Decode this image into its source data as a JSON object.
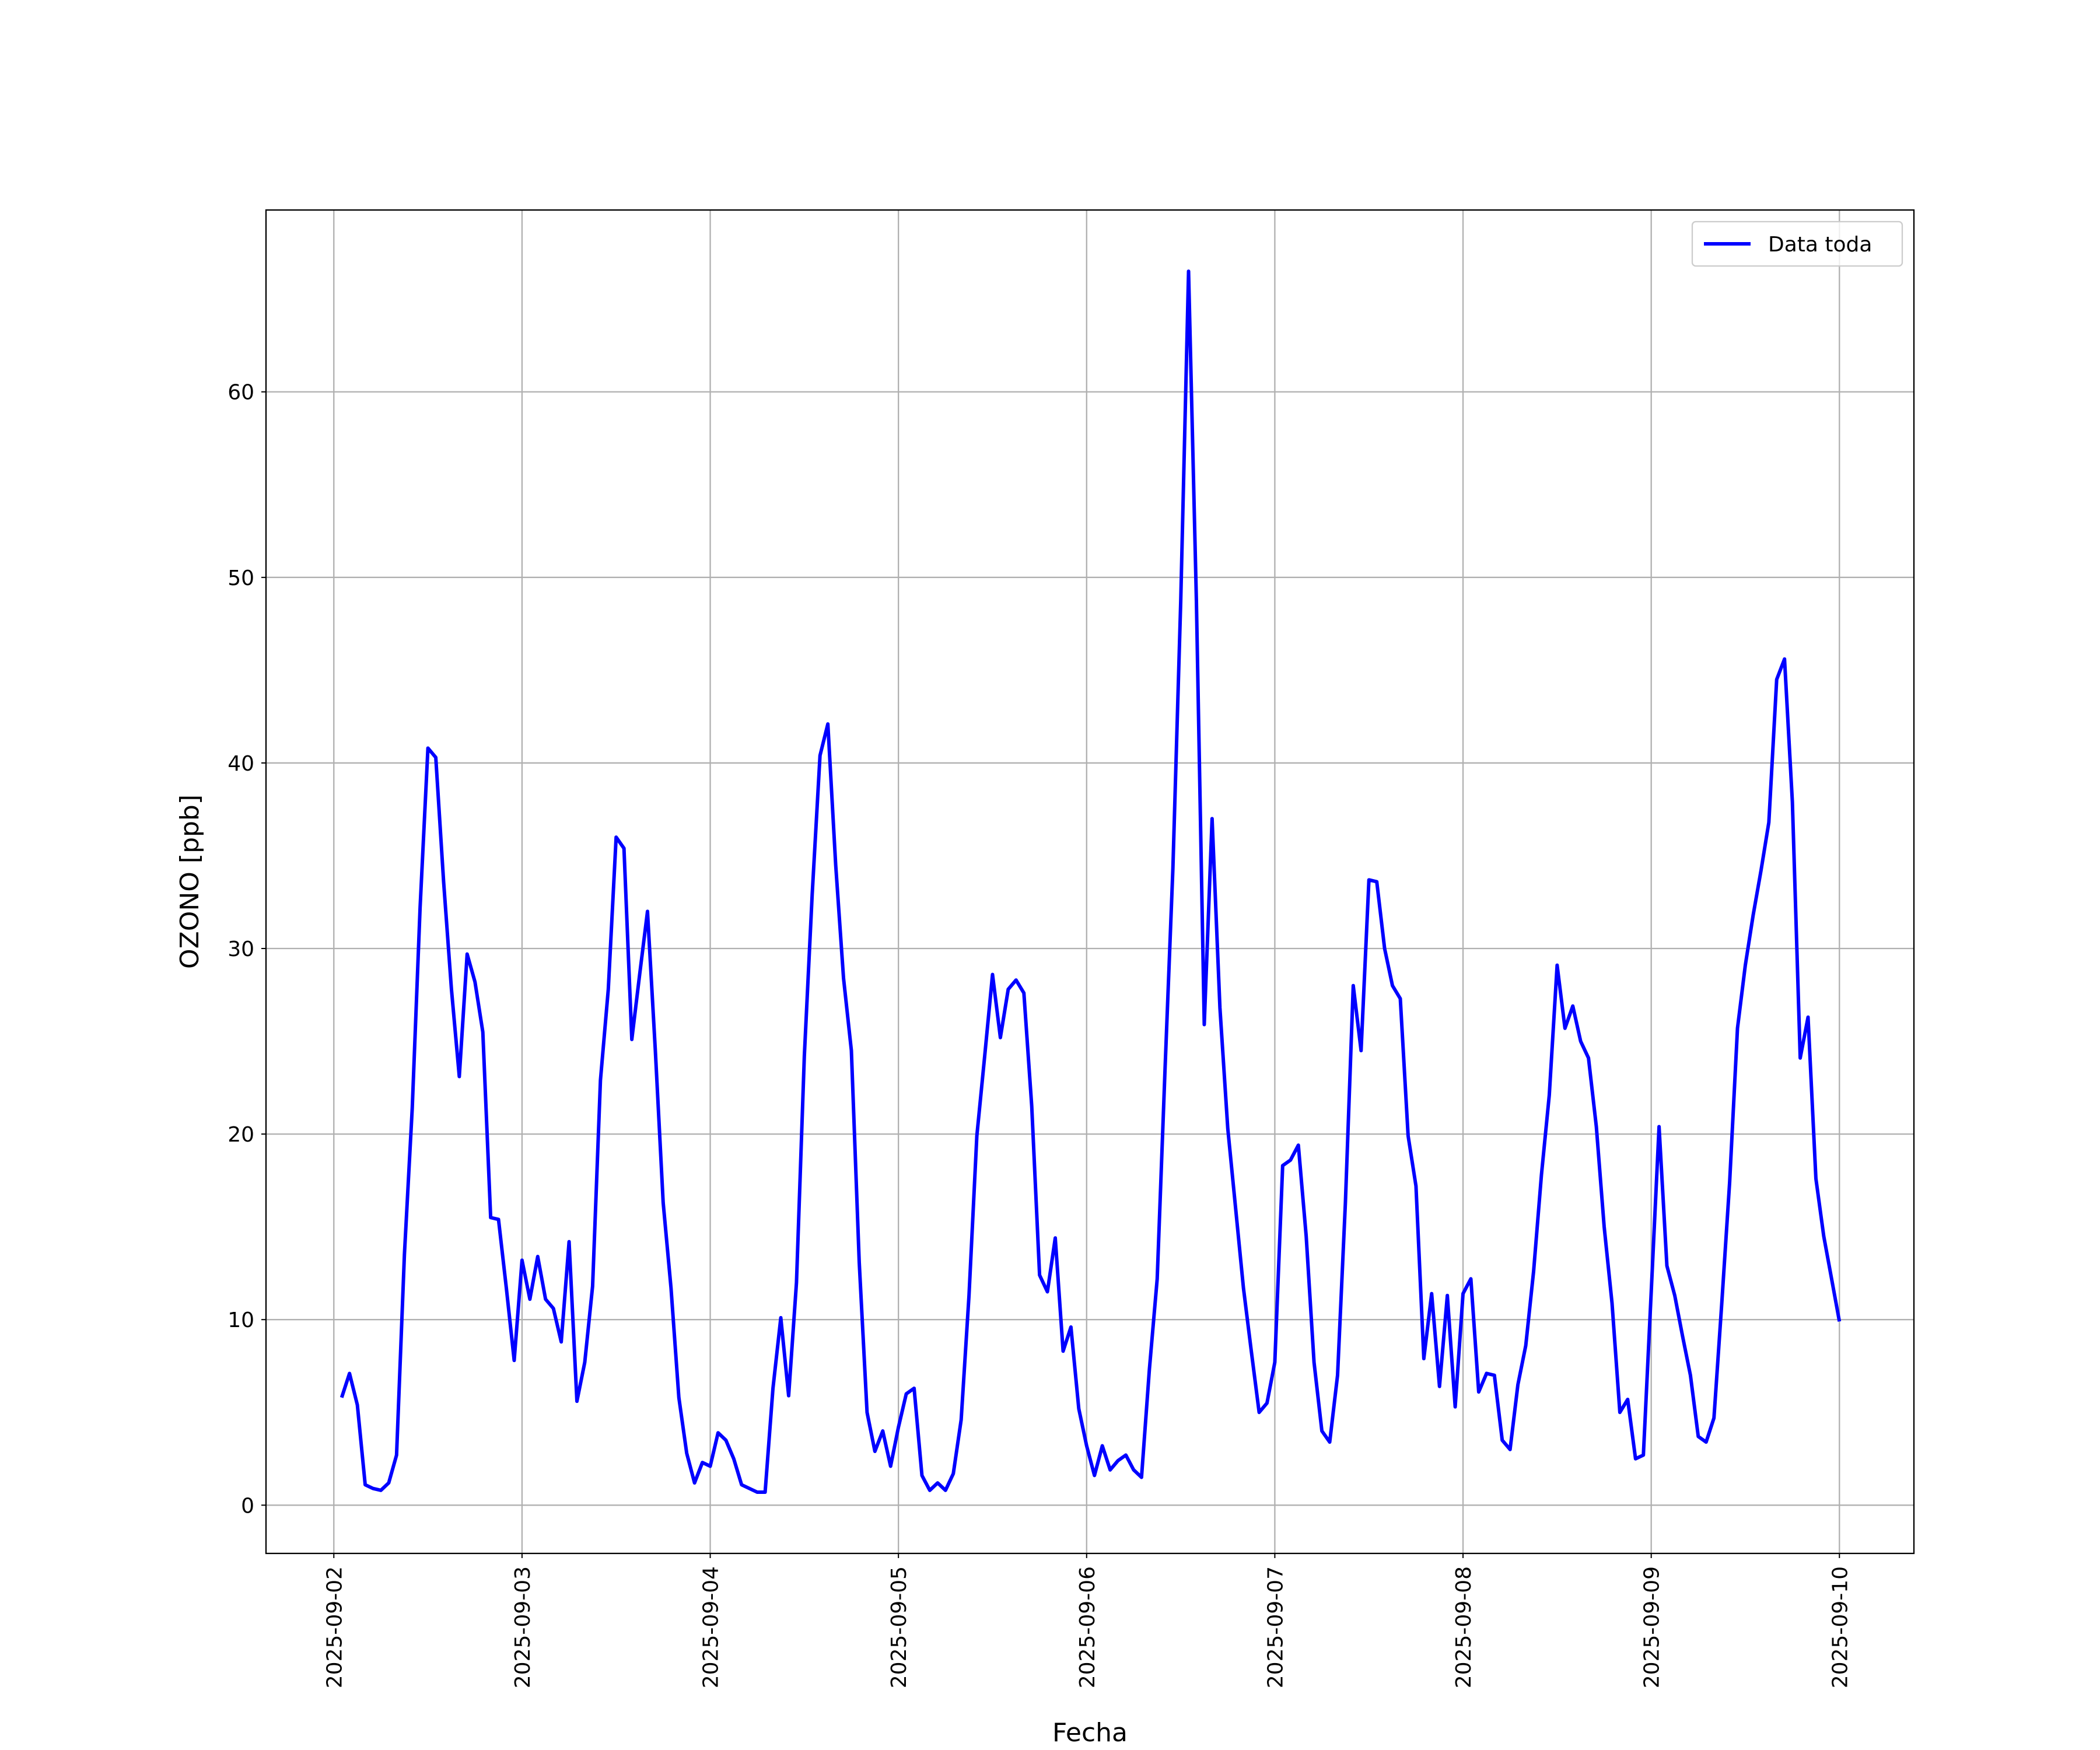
{
  "chart_data": {
    "type": "line",
    "xlabel": "Fecha",
    "ylabel": "OZONO [ppb]",
    "x": [
      "2025-09-02 01:00",
      "2025-09-02 02:00",
      "2025-09-02 03:00",
      "2025-09-02 04:00",
      "2025-09-02 05:00",
      "2025-09-02 06:00",
      "2025-09-02 07:00",
      "2025-09-02 08:00",
      "2025-09-02 09:00",
      "2025-09-02 10:00",
      "2025-09-02 11:00",
      "2025-09-02 12:00",
      "2025-09-02 13:00",
      "2025-09-02 14:00",
      "2025-09-02 15:00",
      "2025-09-02 16:00",
      "2025-09-02 17:00",
      "2025-09-02 18:00",
      "2025-09-02 19:00",
      "2025-09-02 20:00",
      "2025-09-02 21:00",
      "2025-09-02 22:00",
      "2025-09-02 23:00",
      "2025-09-03 00:00",
      "2025-09-03 01:00",
      "2025-09-03 02:00",
      "2025-09-03 03:00",
      "2025-09-03 04:00",
      "2025-09-03 05:00",
      "2025-09-03 06:00",
      "2025-09-03 07:00",
      "2025-09-03 08:00",
      "2025-09-03 09:00",
      "2025-09-03 10:00",
      "2025-09-03 11:00",
      "2025-09-03 12:00",
      "2025-09-03 13:00",
      "2025-09-03 14:00",
      "2025-09-03 15:00",
      "2025-09-03 16:00",
      "2025-09-03 17:00",
      "2025-09-03 18:00",
      "2025-09-03 19:00",
      "2025-09-03 20:00",
      "2025-09-03 21:00",
      "2025-09-03 22:00",
      "2025-09-03 23:00",
      "2025-09-04 00:00",
      "2025-09-04 01:00",
      "2025-09-04 02:00",
      "2025-09-04 03:00",
      "2025-09-04 04:00",
      "2025-09-04 05:00",
      "2025-09-04 06:00",
      "2025-09-04 07:00",
      "2025-09-04 08:00",
      "2025-09-04 09:00",
      "2025-09-04 10:00",
      "2025-09-04 11:00",
      "2025-09-04 12:00",
      "2025-09-04 13:00",
      "2025-09-04 14:00",
      "2025-09-04 15:00",
      "2025-09-04 16:00",
      "2025-09-04 17:00",
      "2025-09-04 18:00",
      "2025-09-04 19:00",
      "2025-09-04 20:00",
      "2025-09-04 21:00",
      "2025-09-04 22:00",
      "2025-09-04 23:00",
      "2025-09-05 00:00",
      "2025-09-05 01:00",
      "2025-09-05 02:00",
      "2025-09-05 03:00",
      "2025-09-05 04:00",
      "2025-09-05 05:00",
      "2025-09-05 06:00",
      "2025-09-05 07:00",
      "2025-09-05 08:00",
      "2025-09-05 09:00",
      "2025-09-05 10:00",
      "2025-09-05 11:00",
      "2025-09-05 12:00",
      "2025-09-05 13:00",
      "2025-09-05 14:00",
      "2025-09-05 15:00",
      "2025-09-05 16:00",
      "2025-09-05 17:00",
      "2025-09-05 18:00",
      "2025-09-05 19:00",
      "2025-09-05 20:00",
      "2025-09-05 21:00",
      "2025-09-05 22:00",
      "2025-09-05 23:00",
      "2025-09-06 00:00",
      "2025-09-06 01:00",
      "2025-09-06 02:00",
      "2025-09-06 03:00",
      "2025-09-06 04:00",
      "2025-09-06 05:00",
      "2025-09-06 06:00",
      "2025-09-06 07:00",
      "2025-09-06 08:00",
      "2025-09-06 09:00",
      "2025-09-06 10:00",
      "2025-09-06 11:00",
      "2025-09-06 12:00",
      "2025-09-06 13:00",
      "2025-09-06 14:00",
      "2025-09-06 15:00",
      "2025-09-06 16:00",
      "2025-09-06 17:00",
      "2025-09-06 18:00",
      "2025-09-06 19:00",
      "2025-09-06 20:00",
      "2025-09-06 21:00",
      "2025-09-06 22:00",
      "2025-09-06 23:00",
      "2025-09-07 00:00",
      "2025-09-07 01:00",
      "2025-09-07 02:00",
      "2025-09-07 03:00",
      "2025-09-07 04:00",
      "2025-09-07 05:00",
      "2025-09-07 06:00",
      "2025-09-07 07:00",
      "2025-09-07 08:00",
      "2025-09-07 09:00",
      "2025-09-07 10:00",
      "2025-09-07 11:00",
      "2025-09-07 12:00",
      "2025-09-07 13:00",
      "2025-09-07 14:00",
      "2025-09-07 15:00",
      "2025-09-07 16:00",
      "2025-09-07 17:00",
      "2025-09-07 18:00",
      "2025-09-07 19:00",
      "2025-09-07 20:00",
      "2025-09-07 21:00",
      "2025-09-07 22:00",
      "2025-09-07 23:00",
      "2025-09-08 00:00",
      "2025-09-08 01:00",
      "2025-09-08 02:00",
      "2025-09-08 03:00",
      "2025-09-08 04:00",
      "2025-09-08 05:00",
      "2025-09-08 06:00",
      "2025-09-08 07:00",
      "2025-09-08 08:00",
      "2025-09-08 09:00",
      "2025-09-08 10:00",
      "2025-09-08 11:00",
      "2025-09-08 12:00",
      "2025-09-08 13:00",
      "2025-09-08 14:00",
      "2025-09-08 15:00",
      "2025-09-08 16:00",
      "2025-09-08 17:00",
      "2025-09-08 18:00",
      "2025-09-08 19:00",
      "2025-09-08 20:00",
      "2025-09-08 21:00",
      "2025-09-08 22:00",
      "2025-09-08 23:00",
      "2025-09-09 00:00",
      "2025-09-09 01:00",
      "2025-09-09 02:00",
      "2025-09-09 03:00",
      "2025-09-09 04:00",
      "2025-09-09 05:00",
      "2025-09-09 06:00",
      "2025-09-09 07:00",
      "2025-09-09 08:00",
      "2025-09-09 09:00",
      "2025-09-09 10:00",
      "2025-09-09 11:00",
      "2025-09-09 12:00",
      "2025-09-09 13:00",
      "2025-09-09 14:00",
      "2025-09-09 15:00",
      "2025-09-09 16:00",
      "2025-09-09 17:00",
      "2025-09-09 18:00",
      "2025-09-09 19:00",
      "2025-09-09 20:00",
      "2025-09-09 21:00",
      "2025-09-09 22:00",
      "2025-09-09 23:00",
      "2025-09-10 00:00"
    ],
    "series": [
      {
        "name": "Data toda",
        "color": "#0000ff",
        "values": [
          5.8,
          7.1,
          5.4,
          1.1,
          0.9,
          0.8,
          1.2,
          2.7,
          13.5,
          21.4,
          32.2,
          40.8,
          40.3,
          33.6,
          27.8,
          23.1,
          29.7,
          28.2,
          25.5,
          15.5,
          15.4,
          11.7,
          7.8,
          13.2,
          11.1,
          13.4,
          11.1,
          10.6,
          8.8,
          14.2,
          5.6,
          7.7,
          11.8,
          22.9,
          27.8,
          36.0,
          35.4,
          25.1,
          28.6,
          32.0,
          24.5,
          16.3,
          11.7,
          5.8,
          2.8,
          1.2,
          2.3,
          2.1,
          3.9,
          3.5,
          2.5,
          1.1,
          0.9,
          0.7,
          0.7,
          6.3,
          10.1,
          5.9,
          12.0,
          24.2,
          32.9,
          40.4,
          42.1,
          34.5,
          28.4,
          24.5,
          13.1,
          5.0,
          2.9,
          4.0,
          2.1,
          4.2,
          6.0,
          6.3,
          1.6,
          0.8,
          1.2,
          0.8,
          1.7,
          4.6,
          11.3,
          19.9,
          24.2,
          28.6,
          25.2,
          27.8,
          28.3,
          27.6,
          21.5,
          12.4,
          11.5,
          14.4,
          8.3,
          9.6,
          5.2,
          3.2,
          1.6,
          3.2,
          1.9,
          2.4,
          2.7,
          1.9,
          1.5,
          7.3,
          12.2,
          23.5,
          34.3,
          48.7,
          66.5,
          48.7,
          25.9,
          37.0,
          26.8,
          20.3,
          16.0,
          11.7,
          8.3,
          5.0,
          5.5,
          7.7,
          18.3,
          18.6,
          19.4,
          14.5,
          7.7,
          4.0,
          3.4,
          7.0,
          16.3,
          28.0,
          24.5,
          33.7,
          33.6,
          30.0,
          28.0,
          27.3,
          19.9,
          17.2,
          7.9,
          11.4,
          6.4,
          11.3,
          5.3,
          11.4,
          12.2,
          6.1,
          7.1,
          7.0,
          3.5,
          3.0,
          6.5,
          8.6,
          12.6,
          17.8,
          22.1,
          29.1,
          25.7,
          26.9,
          25.0,
          24.1,
          20.4,
          15.0,
          10.9,
          5.0,
          5.7,
          2.5,
          2.7,
          11.5,
          20.4,
          12.9,
          11.3,
          9.1,
          7.0,
          3.7,
          3.4,
          4.7,
          10.9,
          17.4,
          25.7,
          29.1,
          31.8,
          34.2,
          36.8,
          44.5,
          45.6,
          37.9,
          24.1,
          26.3,
          17.6,
          14.5,
          12.2,
          9.9
        ]
      }
    ],
    "xlim": [
      "2025-09-01 15:21",
      "2025-09-10 09:30"
    ],
    "xticks": [
      "2025-09-02",
      "2025-09-03",
      "2025-09-04",
      "2025-09-05",
      "2025-09-06",
      "2025-09-07",
      "2025-09-08",
      "2025-09-09",
      "2025-09-10"
    ],
    "ylim": [
      -2.6,
      69.8
    ],
    "yticks": [
      0,
      10,
      20,
      30,
      40,
      50,
      60
    ],
    "grid": true,
    "legend": "upper right"
  }
}
